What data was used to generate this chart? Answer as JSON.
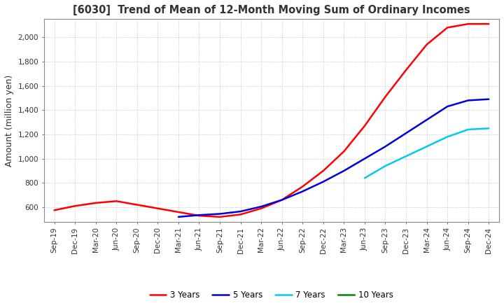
{
  "title": "[6030]  Trend of Mean of 12-Month Moving Sum of Ordinary Incomes",
  "ylabel": "Amount (million yen)",
  "background_color": "#ffffff",
  "plot_bg_color": "#ffffff",
  "grid_color": "#aaaaaa",
  "legend": [
    "3 Years",
    "5 Years",
    "7 Years",
    "10 Years"
  ],
  "line_colors": [
    "#ff0000",
    "#0000dd",
    "#00ccee",
    "#008800"
  ],
  "x_labels": [
    "Sep-19",
    "Dec-19",
    "Mar-20",
    "Jun-20",
    "Sep-20",
    "Dec-20",
    "Mar-21",
    "Jun-21",
    "Sep-21",
    "Dec-21",
    "Mar-22",
    "Jun-22",
    "Sep-22",
    "Dec-22",
    "Mar-23",
    "Jun-23",
    "Sep-23",
    "Dec-23",
    "Mar-24",
    "Jun-24",
    "Sep-24",
    "Dec-24"
  ],
  "ylim": [
    480,
    2150
  ],
  "yticks": [
    600,
    800,
    1000,
    1200,
    1400,
    1600,
    1800,
    2000
  ],
  "series_3yr": [
    575,
    610,
    635,
    650,
    620,
    590,
    560,
    530,
    520,
    540,
    590,
    660,
    770,
    900,
    1060,
    1270,
    1510,
    1730,
    1940,
    2080,
    2110,
    2110
  ],
  "series_5yr": [
    null,
    null,
    null,
    null,
    null,
    null,
    520,
    535,
    545,
    565,
    605,
    660,
    730,
    810,
    900,
    1000,
    1100,
    1210,
    1320,
    1430,
    1480,
    1490
  ],
  "series_7yr": [
    null,
    null,
    null,
    null,
    null,
    null,
    null,
    null,
    null,
    null,
    null,
    null,
    null,
    null,
    null,
    840,
    940,
    1020,
    1100,
    1180,
    1240,
    1250
  ],
  "series_10yr": [
    null,
    null,
    null,
    null,
    null,
    null,
    null,
    null,
    null,
    null,
    null,
    null,
    null,
    null,
    null,
    null,
    null,
    null,
    null,
    null,
    null,
    null
  ]
}
